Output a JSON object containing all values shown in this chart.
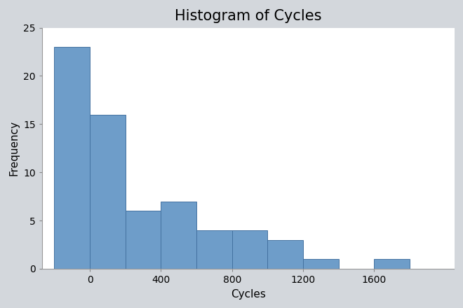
{
  "title": "Histogram of Cycles",
  "xlabel": "Cycles",
  "ylabel": "Frequency",
  "bar_color": "#6e9dc9",
  "bar_edge_color": "#4472a0",
  "background_color": "#d3d7dc",
  "plot_bg_color": "#ffffff",
  "bin_left_edges": [
    -200,
    0,
    200,
    400,
    600,
    800,
    1000,
    1200,
    1600,
    1800
  ],
  "bin_width": 200,
  "frequencies": [
    23,
    16,
    6,
    7,
    4,
    4,
    3,
    1,
    1,
    0
  ],
  "xlim": [
    -270,
    2050
  ],
  "ylim": [
    0,
    25
  ],
  "xticks": [
    0,
    400,
    800,
    1200,
    1600
  ],
  "yticks": [
    0,
    5,
    10,
    15,
    20,
    25
  ],
  "title_fontsize": 15,
  "label_fontsize": 11,
  "tick_fontsize": 10
}
